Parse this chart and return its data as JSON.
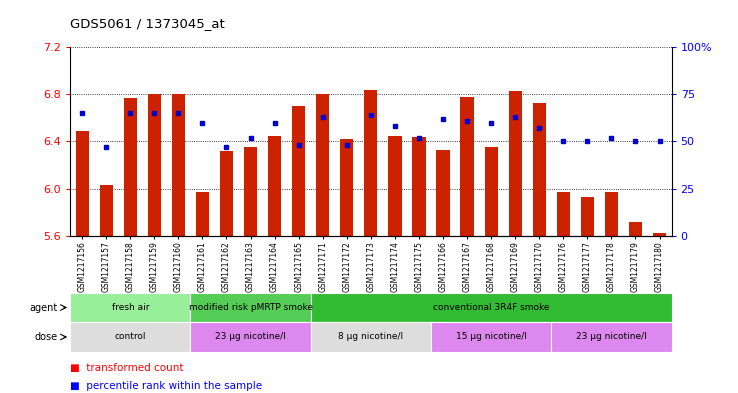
{
  "title": "GDS5061 / 1373045_at",
  "samples": [
    "GSM1217156",
    "GSM1217157",
    "GSM1217158",
    "GSM1217159",
    "GSM1217160",
    "GSM1217161",
    "GSM1217162",
    "GSM1217163",
    "GSM1217164",
    "GSM1217165",
    "GSM1217171",
    "GSM1217172",
    "GSM1217173",
    "GSM1217174",
    "GSM1217175",
    "GSM1217166",
    "GSM1217167",
    "GSM1217168",
    "GSM1217169",
    "GSM1217170",
    "GSM1217176",
    "GSM1217177",
    "GSM1217178",
    "GSM1217179",
    "GSM1217180"
  ],
  "bar_values": [
    6.49,
    6.03,
    6.77,
    6.8,
    6.8,
    5.97,
    6.32,
    6.35,
    6.45,
    6.7,
    6.8,
    6.42,
    6.84,
    6.45,
    6.44,
    6.33,
    6.78,
    6.35,
    6.83,
    6.73,
    5.97,
    5.93,
    5.97,
    5.72,
    5.62
  ],
  "percentile_values": [
    65,
    47,
    65,
    65,
    65,
    60,
    47,
    52,
    60,
    48,
    63,
    48,
    64,
    58,
    52,
    62,
    61,
    60,
    63,
    57,
    50,
    50,
    52,
    50,
    50
  ],
  "ymin": 5.6,
  "ymax": 7.2,
  "yticks": [
    5.6,
    6.0,
    6.4,
    6.8,
    7.2
  ],
  "right_yticks": [
    0,
    25,
    50,
    75,
    100
  ],
  "bar_color": "#cc2200",
  "dot_color": "#0000cc",
  "agent_groups": [
    {
      "label": "fresh air",
      "start": 0,
      "end": 5,
      "color": "#99ee99"
    },
    {
      "label": "modified risk pMRTP smoke",
      "start": 5,
      "end": 10,
      "color": "#55cc55"
    },
    {
      "label": "conventional 3R4F smoke",
      "start": 10,
      "end": 25,
      "color": "#33bb33"
    }
  ],
  "dose_groups": [
    {
      "label": "control",
      "start": 0,
      "end": 5,
      "color": "#dddddd"
    },
    {
      "label": "23 μg nicotine/l",
      "start": 5,
      "end": 10,
      "color": "#dd88ee"
    },
    {
      "label": "8 μg nicotine/l",
      "start": 10,
      "end": 15,
      "color": "#dddddd"
    },
    {
      "label": "15 μg nicotine/l",
      "start": 15,
      "end": 20,
      "color": "#dd88ee"
    },
    {
      "label": "23 μg nicotine/l",
      "start": 20,
      "end": 25,
      "color": "#dd88ee"
    }
  ]
}
